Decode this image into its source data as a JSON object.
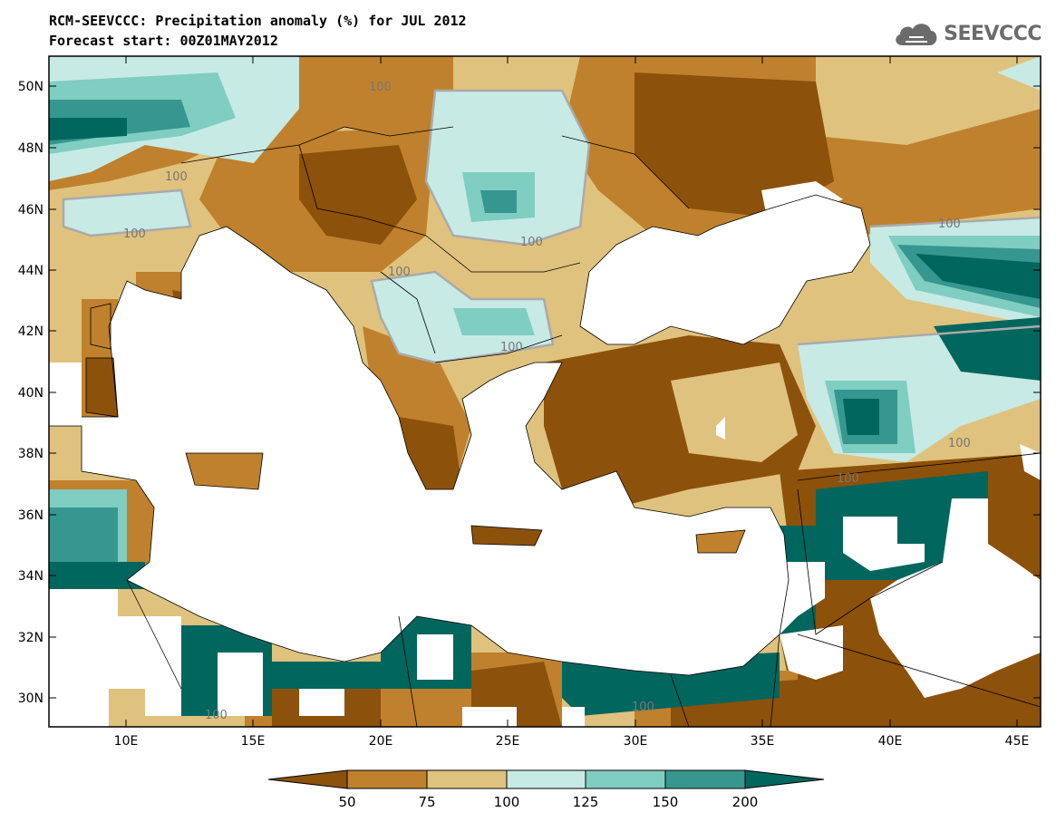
{
  "title": "RCM-SEEVCCC: Precipitation anomaly (%) for JUL 2012",
  "subtitle": "Forecast start: 00Z01MAY2012",
  "logo": {
    "text": "SEEVCCC",
    "icon": "cloud-icon"
  },
  "map": {
    "lat_labels": [
      "50N",
      "48N",
      "46N",
      "44N",
      "42N",
      "40N",
      "38N",
      "36N",
      "34N",
      "32N",
      "30N"
    ],
    "lon_labels": [
      "10E",
      "15E",
      "20E",
      "25E",
      "30E",
      "35E",
      "40E",
      "45E"
    ],
    "contour_labels": [
      "100",
      "100",
      "100",
      "100",
      "100",
      "100",
      "100",
      "100",
      "100",
      "100",
      "100"
    ]
  },
  "colorbar": {
    "labels": [
      "50",
      "75",
      "100",
      "125",
      "150",
      "200"
    ],
    "colors": [
      "#8c510a",
      "#bf812d",
      "#dfc27d",
      "#c7eae5",
      "#80cdc1",
      "#35978f",
      "#01665e"
    ]
  }
}
